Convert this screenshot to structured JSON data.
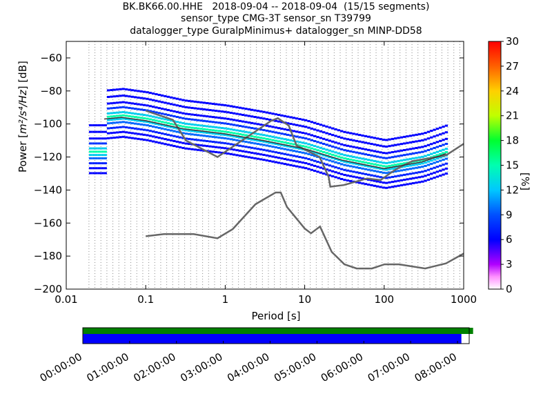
{
  "title": {
    "line1": "BK.BK66.00.HHE   2018-09-04 -- 2018-09-04  (15/15 segments)",
    "line2": "sensor_type CMG-3T sensor_sn T39799",
    "line3": "datalogger_type GuralpMinimus+ datalogger_sn MINP-DD58"
  },
  "chart_data": [
    {
      "type": "heatmap",
      "xlabel": "Period [s]",
      "ylabel_prefix": "Power [",
      "ylabel_math": "m²/s⁴/Hz",
      "ylabel_suffix": "] [dB]",
      "xscale": "log",
      "xlim": [
        0.01,
        1000
      ],
      "ylim": [
        -200,
        -50
      ],
      "xticks": [
        "0.01",
        "0.1",
        "1",
        "10",
        "100",
        "1000"
      ],
      "yticks": [
        "−60",
        "−80",
        "−100",
        "−120",
        "−140",
        "−160",
        "−180",
        "−200"
      ],
      "colorbar": {
        "label": "[%]",
        "range": [
          0,
          30
        ],
        "ticks": [
          "0",
          "3",
          "6",
          "9",
          "12",
          "15",
          "18",
          "21",
          "24",
          "27",
          "30"
        ]
      },
      "grid": "dotted vertical at period bins",
      "series": [
        {
          "name": "",
          "type": "line",
          "color": "#666666",
          "x": [
            0.1,
            0.17,
            0.4,
            0.8,
            1.24,
            2.4,
            4.3,
            5.0,
            6.0,
            10.0,
            12.0,
            15.6,
            21.9,
            31.6,
            45.0,
            70.0,
            101.0,
            154.0,
            328.0,
            600.0,
            1000.0
          ],
          "y": [
            -168,
            -166.7,
            -166.7,
            -169.2,
            -163.7,
            -148.6,
            -141.5,
            -141.5,
            -150.3,
            -163.3,
            -166.2,
            -162.1,
            -177.5,
            -185.0,
            -187.5,
            -187.5,
            -185.0,
            -185.0,
            -187.5,
            -184.4,
            -178.5
          ]
        },
        {
          "name": "",
          "type": "line",
          "color": "#666666",
          "x": [
            0.1,
            0.22,
            0.32,
            0.8,
            3.8,
            4.6,
            6.3,
            7.9,
            15.4,
            20.0,
            21.0,
            31.0,
            61.0,
            90.0,
            110.0,
            135.0,
            175.0,
            228.0,
            600.0,
            1000.0
          ],
          "y": [
            -92,
            -97.5,
            -110,
            -120,
            -98,
            -96.5,
            -101,
            -113,
            -120,
            -132,
            -138,
            -137,
            -133,
            -134,
            -131,
            -128,
            -125,
            -122.5,
            -119,
            -112
          ]
        },
        {
          "name": "",
          "type": "line",
          "color": "#333333",
          "x": [
            0.03,
            0.05,
            0.1,
            0.3,
            1.0,
            3.0,
            10.0,
            30.0,
            100.0,
            300.0,
            600.0
          ],
          "y": [
            -97,
            -96,
            -98,
            -103,
            -106,
            -110,
            -115,
            -122,
            -127,
            -123,
            -118
          ]
        }
      ]
    },
    {
      "type": "bar",
      "xticks": [
        "00:00:00",
        "01:00:00",
        "02:00:00",
        "03:00:00",
        "04:00:00",
        "05:00:00",
        "06:00:00",
        "07:00:00",
        "08:00:00"
      ],
      "series": [
        {
          "name": "",
          "color": "#008000",
          "start": "00:00:00",
          "end": "08:20:00"
        },
        {
          "name": "",
          "color": "#0000ff",
          "start": "00:00:00",
          "end": "08:05:00"
        }
      ]
    }
  ]
}
